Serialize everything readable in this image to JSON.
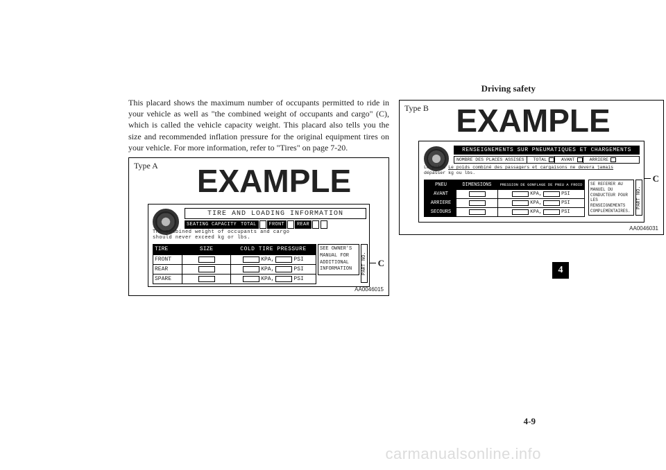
{
  "header": {
    "section_title": "Driving safety"
  },
  "paragraph": "This placard shows the maximum number of occupants permitted to ride in your vehicle as well as \"the combined weight of occupants and cargo\" (C), which is called the vehicle capacity weight. This placard also tells you the size and recommended inflation pressure for the original equipment tires on your vehicle. For more information, refer to \"Tires\" on page 7-20.",
  "placard_a": {
    "type_label": "Type A",
    "example": "EXAMPLE",
    "title": "TIRE AND LOADING INFORMATION",
    "seating_label": "SEATING CAPACITY",
    "seating_total": "TOTAL",
    "seating_front": "FRONT",
    "seating_rear": "REAR",
    "combined_line1": "The combined weight of occupants and cargo",
    "combined_line2": "should never exceed        kg  or        lbs.",
    "grid_hdr_tire": "TIRE",
    "grid_hdr_size": "SIZE",
    "grid_hdr_press": "COLD TIRE PRESSURE",
    "rows": [
      "FRONT",
      "REAR",
      "SPARE"
    ],
    "unit_kpa": "KPA,",
    "unit_psi": "PSI",
    "side_text": "SEE OWNER'S MANUAL FOR ADDITIONAL INFORMATION",
    "part_no": "PART NO.",
    "c_label": "C",
    "code": "AA0046015"
  },
  "placard_b": {
    "type_label": "Type B",
    "example": "EXAMPLE",
    "title": "RENSEIGNEMENTS SUR PNEUMATIQUES ET CHARGEMENTS",
    "places_label": "NOMBRE DES PLACES ASSISES",
    "places_total": "TOTAL",
    "places_front": "AVANT",
    "places_rear": "ARRIERE",
    "poids_line1": "Le poids combiné des passagers et cargaisons ne devera jamais",
    "poids_line2": "dépasser       kg ou       lbs.",
    "grid_hdr_pneu": "PNEU",
    "grid_hdr_dim": "DIMENSIONS",
    "grid_hdr_press": "PRESSION DE GONFLAGE DE PNEU A FROID",
    "rows": [
      "AVANT",
      "ARRIERE",
      "SECOURS"
    ],
    "unit_kpa": "KPA,",
    "unit_psi": "PSI",
    "side_text": "SE REFERER AU MANUEL DU CONDUCTEUR POUR LES RENSEIGNEMENTS COMPLEMENTAIRES.",
    "part_no": "PART NO.",
    "c_label": "C",
    "code": "AA0046031"
  },
  "footer": {
    "chapter": "4",
    "page": "4-9",
    "watermark": "carmanualsonline.info"
  }
}
